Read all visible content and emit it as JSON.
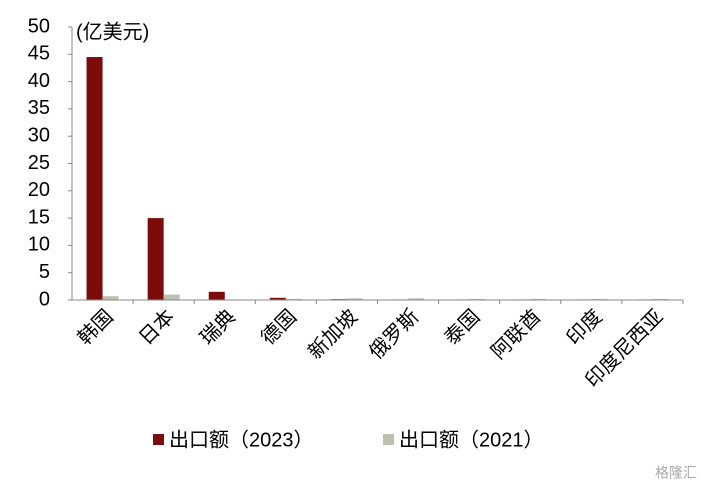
{
  "chart_data": {
    "type": "bar",
    "unit_label": "(亿美元)",
    "categories": [
      "韩国",
      "日本",
      "瑞典",
      "德国",
      "新加坡",
      "俄罗斯",
      "泰国",
      "阿联酋",
      "印度",
      "印度尼西亚"
    ],
    "series": [
      {
        "name": "出口额（2023）",
        "color": "#7b0c0c",
        "values": [
          44.5,
          15,
          1.5,
          0.4,
          0.15,
          0.1,
          0.1,
          0.1,
          0.1,
          0.1
        ]
      },
      {
        "name": "出口额（2021）",
        "color": "#c0bfb0",
        "values": [
          0.7,
          1.0,
          0.1,
          0.2,
          0.3,
          0.3,
          0.2,
          0.2,
          0.2,
          0.2
        ]
      }
    ],
    "ylim": [
      0,
      50
    ],
    "yticks": [
      0,
      5,
      10,
      15,
      20,
      25,
      30,
      35,
      40,
      45,
      50
    ],
    "grid": false,
    "legend": "bottom",
    "watermark": "格隆汇"
  }
}
